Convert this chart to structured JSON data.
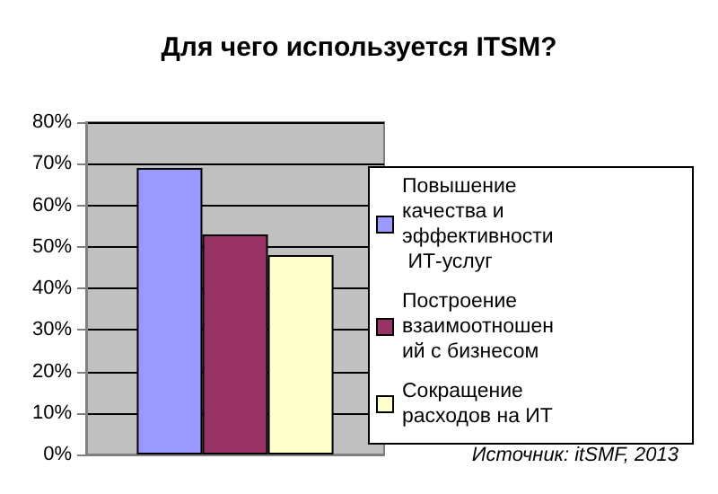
{
  "chart_data": {
    "type": "bar",
    "title": "Для чего используется ITSM?",
    "categories": [
      null
    ],
    "series": [
      {
        "name": "Повышение качества и эффективности ИТ-услуг",
        "color": "#9999ff",
        "values": [
          69
        ]
      },
      {
        "name": "Построение взаимоотношений с бизнесом",
        "color": "#993366",
        "values": [
          53
        ]
      },
      {
        "name": "Сокращение расходов на ИТ",
        "color": "#ffffcc",
        "values": [
          48
        ]
      }
    ],
    "ylim": [
      0,
      80
    ],
    "yticks": [
      {
        "value": 0,
        "label": "0%"
      },
      {
        "value": 10,
        "label": "10%"
      },
      {
        "value": 20,
        "label": "20%"
      },
      {
        "value": 30,
        "label": "30%"
      },
      {
        "value": 40,
        "label": "40%"
      },
      {
        "value": 50,
        "label": "50%"
      },
      {
        "value": 60,
        "label": "60%"
      },
      {
        "value": 70,
        "label": "70%"
      },
      {
        "value": 80,
        "label": "80%"
      }
    ],
    "grid": "y",
    "legend": "right",
    "annotations": [
      "Источник: itSMF, 2013"
    ]
  }
}
